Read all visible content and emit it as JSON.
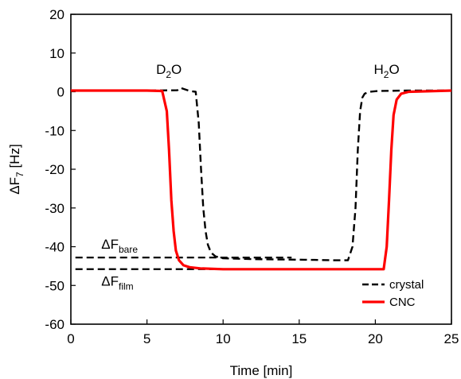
{
  "chart_data": {
    "type": "line",
    "xlabel": "Time [min]",
    "ylabel": {
      "base": "ΔF",
      "sub": "7",
      "rest": " [Hz]"
    },
    "xlim": [
      0,
      25
    ],
    "ylim": [
      -60,
      20
    ],
    "xticks": [
      0,
      5,
      10,
      15,
      20,
      25
    ],
    "yticks": [
      20,
      10,
      0,
      -10,
      -20,
      -30,
      -40,
      -50,
      -60
    ],
    "grid": false,
    "legend_position": "bottom-right",
    "series": [
      {
        "name": "crystal",
        "color": "#000000",
        "style": "dashed",
        "x": [
          0,
          5,
          7,
          7.2,
          7.8,
          8.2,
          8.4,
          8.55,
          8.7,
          8.85,
          9.0,
          9.2,
          9.5,
          10.0,
          12,
          14,
          16,
          17.4,
          18.2,
          18.5,
          18.7,
          18.85,
          19.0,
          19.15,
          19.3,
          19.6,
          20.2,
          22,
          25
        ],
        "y": [
          0.3,
          0.3,
          0.4,
          1.0,
          0.2,
          0.0,
          -8,
          -20,
          -30,
          -36,
          -39.5,
          -41.5,
          -42.5,
          -43,
          -43.2,
          -43.3,
          -43.4,
          -43.5,
          -43.5,
          -40,
          -30,
          -15,
          -5,
          -1.5,
          -0.5,
          0,
          0.2,
          0.3,
          0.3
        ]
      },
      {
        "name": "CNC",
        "color": "#ff0000",
        "style": "solid",
        "x": [
          0,
          5,
          6.0,
          6.3,
          6.45,
          6.6,
          6.75,
          6.9,
          7.1,
          7.4,
          7.8,
          8.5,
          10,
          14,
          18,
          20,
          20.55,
          20.75,
          20.9,
          21.05,
          21.2,
          21.4,
          21.7,
          22.2,
          25
        ],
        "y": [
          0.3,
          0.3,
          0.2,
          -5,
          -15,
          -28,
          -36,
          -41,
          -43.5,
          -44.8,
          -45.3,
          -45.6,
          -45.8,
          -45.8,
          -45.8,
          -45.8,
          -45.8,
          -40,
          -28,
          -15,
          -6,
          -2,
          -0.5,
          0,
          0.3
        ]
      }
    ],
    "reference_lines": [
      {
        "name": "bare-reference",
        "y": -42.8,
        "x_range": [
          0.3,
          14.5
        ],
        "color": "#000000",
        "style": "dashed"
      },
      {
        "name": "film-reference",
        "y": -45.8,
        "x_range": [
          0.3,
          14.5
        ],
        "color": "#000000",
        "style": "dashed"
      }
    ],
    "annotations": [
      {
        "name": "d2o-label",
        "parts": [
          [
            "D",
            ""
          ],
          [
            "2",
            "sub"
          ],
          [
            "O",
            ""
          ]
        ],
        "x": 5.6,
        "y": 4.6
      },
      {
        "name": "h2o-label",
        "parts": [
          [
            "H",
            ""
          ],
          [
            "2",
            "sub"
          ],
          [
            "O",
            ""
          ]
        ],
        "x": 19.9,
        "y": 4.6
      },
      {
        "name": "delta-f-bare-label",
        "parts": [
          [
            "ΔF",
            ""
          ],
          [
            "bare",
            "sub"
          ]
        ],
        "x": 2.0,
        "y": -40.5
      },
      {
        "name": "delta-f-film-label",
        "parts": [
          [
            "ΔF",
            ""
          ],
          [
            "film",
            "sub"
          ]
        ],
        "x": 2.0,
        "y": -50.0
      }
    ],
    "legend": [
      {
        "name": "crystal",
        "label": "crystal",
        "color": "#000000",
        "style": "dashed"
      },
      {
        "name": "CNC",
        "label": "CNC",
        "color": "#ff0000",
        "style": "solid"
      }
    ]
  }
}
